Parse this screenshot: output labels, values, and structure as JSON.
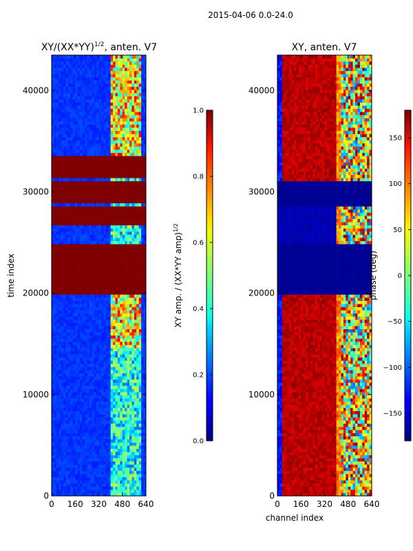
{
  "figure": {
    "suptitle": "2015-04-06 0.0-24.0"
  },
  "chart_data": [
    {
      "type": "heatmap",
      "title": "XY/(XX*YY)",
      "title_exponent": "1/2",
      "title_suffix": ", anten. V7",
      "xlabel": "",
      "ylabel": "time index",
      "xlim": [
        0,
        640
      ],
      "ylim": [
        0,
        43500
      ],
      "xticks": [
        0,
        160,
        320,
        480,
        640
      ],
      "yticks": [
        0,
        10000,
        20000,
        30000,
        40000
      ],
      "background_value": 0.15,
      "bright_band_channels": [
        400,
        610
      ],
      "saturated_time_ranges": [
        [
          20000,
          25000
        ],
        [
          26800,
          28600
        ],
        [
          29000,
          31000
        ],
        [
          31400,
          33500
        ]
      ],
      "colorbar": {
        "label": "XY amp. / (XX*YY amp)",
        "label_exponent": "1/2",
        "range": [
          0.0,
          1.0
        ],
        "ticks": [
          "0.0",
          "0.2",
          "0.4",
          "0.6",
          "0.8",
          "1.0"
        ]
      }
    },
    {
      "type": "heatmap",
      "title": "XY, anten. V7",
      "xlabel": "channel index",
      "ylabel": "",
      "xlim": [
        0,
        640
      ],
      "ylim": [
        0,
        43500
      ],
      "xticks": [
        0,
        160,
        320,
        480,
        640
      ],
      "yticks": [
        0,
        10000,
        20000,
        30000,
        40000
      ],
      "phase_value_low_channels": 175,
      "flat_time_ranges": [
        [
          20000,
          25000
        ],
        [
          28500,
          31000
        ]
      ],
      "colorbar": {
        "label": "phase (deg)",
        "range": [
          -180,
          180
        ],
        "ticks": [
          "150",
          "100",
          "50",
          "0",
          "−50",
          "−100",
          "−150"
        ]
      }
    }
  ]
}
